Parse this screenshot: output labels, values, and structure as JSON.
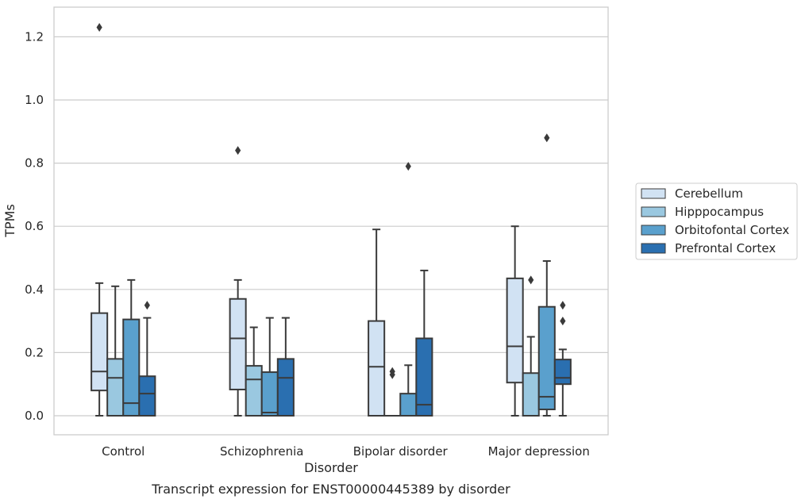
{
  "chart_data": {
    "type": "boxplot",
    "title": "Transcript expression for ENST00000445389 by disorder",
    "xlabel": "Disorder",
    "ylabel": "TPMs",
    "ylim": [
      -0.06,
      1.29
    ],
    "yticks": [
      "0.0",
      "0.2",
      "0.4",
      "0.6",
      "0.8",
      "1.0",
      "1.2"
    ],
    "categories": [
      "Control",
      "Schizophrenia",
      "Bipolar disorder",
      "Major depression"
    ],
    "grid": "horizontal",
    "legend_position": "right",
    "series": [
      {
        "name": "Cerebellum",
        "color": "#d1e2f3",
        "boxes": [
          {
            "min": 0.0,
            "q1": 0.08,
            "median": 0.14,
            "q3": 0.325,
            "max": 0.42,
            "outliers": [
              1.23
            ]
          },
          {
            "min": 0.0,
            "q1": 0.083,
            "median": 0.245,
            "q3": 0.37,
            "max": 0.43,
            "outliers": [
              0.84
            ]
          },
          {
            "min": 0.0,
            "q1": 0.0,
            "median": 0.155,
            "q3": 0.3,
            "max": 0.59,
            "outliers": []
          },
          {
            "min": 0.0,
            "q1": 0.105,
            "median": 0.22,
            "q3": 0.435,
            "max": 0.6,
            "outliers": []
          }
        ]
      },
      {
        "name": "Hipppocampus",
        "color": "#9ac8e0",
        "boxes": [
          {
            "min": 0.0,
            "q1": 0.0,
            "median": 0.12,
            "q3": 0.18,
            "max": 0.41,
            "outliers": []
          },
          {
            "min": 0.0,
            "q1": 0.0,
            "median": 0.115,
            "q3": 0.158,
            "max": 0.28,
            "outliers": []
          },
          {
            "min": 0.0,
            "q1": 0.0,
            "median": 0.0,
            "q3": 0.0,
            "max": 0.0,
            "outliers": [
              0.13,
              0.14
            ]
          },
          {
            "min": 0.0,
            "q1": 0.0,
            "median": 0.0,
            "q3": 0.135,
            "max": 0.25,
            "outliers": [
              0.43
            ]
          }
        ]
      },
      {
        "name": "Orbitofontal Cortex",
        "color": "#5aa0cd",
        "boxes": [
          {
            "min": 0.0,
            "q1": 0.0,
            "median": 0.04,
            "q3": 0.305,
            "max": 0.43,
            "outliers": []
          },
          {
            "min": 0.0,
            "q1": 0.0,
            "median": 0.01,
            "q3": 0.138,
            "max": 0.31,
            "outliers": []
          },
          {
            "min": 0.0,
            "q1": 0.0,
            "median": 0.0,
            "q3": 0.07,
            "max": 0.16,
            "outliers": [
              0.79
            ]
          },
          {
            "min": 0.0,
            "q1": 0.02,
            "median": 0.06,
            "q3": 0.345,
            "max": 0.49,
            "outliers": [
              0.88
            ]
          }
        ]
      },
      {
        "name": "Prefrontal Cortex",
        "color": "#2a6fb0",
        "boxes": [
          {
            "min": 0.0,
            "q1": 0.0,
            "median": 0.07,
            "q3": 0.125,
            "max": 0.31,
            "outliers": [
              0.35
            ]
          },
          {
            "min": 0.0,
            "q1": 0.0,
            "median": 0.12,
            "q3": 0.18,
            "max": 0.31,
            "outliers": []
          },
          {
            "min": 0.0,
            "q1": 0.0,
            "median": 0.035,
            "q3": 0.245,
            "max": 0.46,
            "outliers": []
          },
          {
            "min": 0.0,
            "q1": 0.1,
            "median": 0.12,
            "q3": 0.178,
            "max": 0.21,
            "outliers": [
              0.35,
              0.3
            ]
          }
        ]
      }
    ]
  }
}
